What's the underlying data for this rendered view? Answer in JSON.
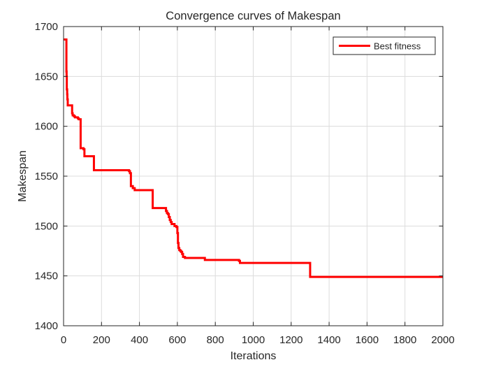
{
  "chart_data": {
    "type": "line",
    "title": "Convergence curves of Makespan",
    "xlabel": "Iterations",
    "ylabel": "Makespan",
    "xlim": [
      0,
      2000
    ],
    "ylim": [
      1400,
      1700
    ],
    "xticks": [
      0,
      200,
      400,
      600,
      800,
      1000,
      1200,
      1400,
      1600,
      1800,
      2000
    ],
    "yticks": [
      1400,
      1450,
      1500,
      1550,
      1600,
      1650,
      1700
    ],
    "grid": true,
    "legend_position": "top-right",
    "step": true,
    "series": [
      {
        "name": "Best fitness",
        "color": "#ff0000",
        "x": [
          1,
          15,
          16,
          17,
          19,
          20,
          22,
          45,
          48,
          55,
          60,
          70,
          75,
          80,
          88,
          90,
          92,
          100,
          105,
          110,
          160,
          162,
          345,
          350,
          355,
          360,
          365,
          370,
          375,
          468,
          470,
          540,
          545,
          550,
          555,
          560,
          565,
          570,
          585,
          595,
          600,
          603,
          606,
          610,
          615,
          620,
          625,
          630,
          640,
          650,
          745,
          750,
          920,
          925,
          930,
          1295,
          1300,
          2000
        ],
        "y": [
          1687,
          1655,
          1650,
          1637,
          1632,
          1627,
          1621,
          1613,
          1611,
          1610,
          1609,
          1609,
          1608,
          1607,
          1607,
          1578,
          1578,
          1578,
          1577,
          1570,
          1556,
          1556,
          1555,
          1553,
          1540,
          1540,
          1538,
          1538,
          1536,
          1536,
          1518,
          1515,
          1513,
          1512,
          1509,
          1506,
          1504,
          1502,
          1500,
          1499,
          1493,
          1483,
          1478,
          1476,
          1475,
          1474,
          1472,
          1469,
          1468,
          1468,
          1466,
          1466,
          1466,
          1465,
          1463,
          1463,
          1449,
          1449
        ]
      }
    ]
  }
}
